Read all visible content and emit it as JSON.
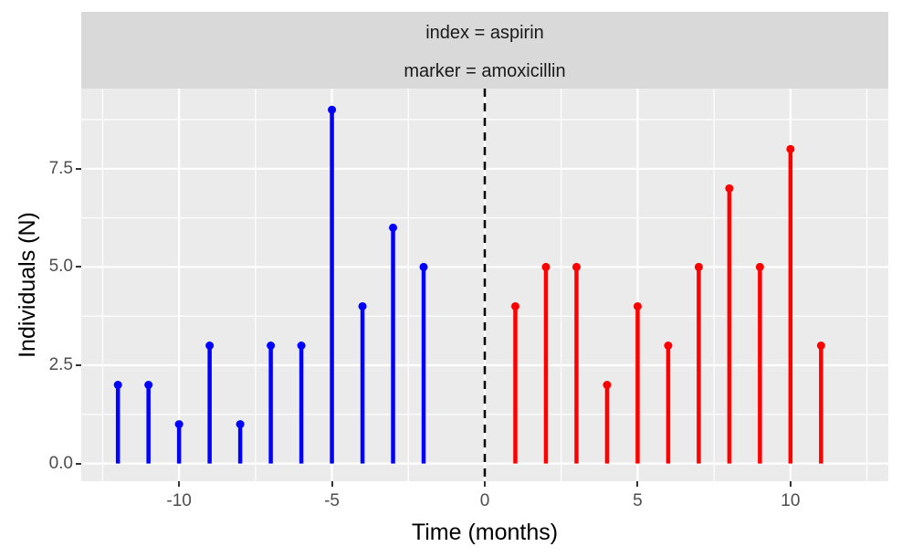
{
  "chart_data": {
    "type": "stem",
    "facet_strip_labels": [
      "index = aspirin",
      "marker = amoxicillin"
    ],
    "xlabel": "Time (months)",
    "ylabel": "Individuals (N)",
    "x_ticks": [
      -10,
      -5,
      0,
      5,
      10
    ],
    "x_tick_labels": [
      "-10",
      "-5",
      "0",
      "5",
      "10"
    ],
    "x_minor_gridlines": [
      -12.5,
      -7.5,
      -2.5,
      2.5,
      7.5,
      12.5
    ],
    "y_ticks": [
      0,
      2.5,
      5,
      7.5
    ],
    "y_tick_labels": [
      "0.0",
      "2.5",
      "5.0",
      "7.5"
    ],
    "y_minor_gridlines": [
      1.25,
      3.75,
      6.25,
      8.75
    ],
    "xlim": [
      -13.2,
      13.2
    ],
    "ylim": [
      -0.45,
      9.54
    ],
    "baseline_y": 0,
    "reference_line": {
      "x": 0,
      "style": "dashed",
      "color": "#000000"
    },
    "grid": "on",
    "legend": "none",
    "series": [
      {
        "name": "pre-index-blue",
        "color": "#0000FF",
        "points": [
          [
            -12,
            2
          ],
          [
            -11,
            2
          ],
          [
            -10,
            1
          ],
          [
            -9,
            3
          ],
          [
            -8,
            1
          ],
          [
            -7,
            3
          ],
          [
            -6,
            3
          ],
          [
            -5,
            9
          ],
          [
            -4,
            4
          ],
          [
            -3,
            6
          ],
          [
            -2,
            5
          ]
        ]
      },
      {
        "name": "post-index-red",
        "color": "#FF0000",
        "points": [
          [
            1,
            4
          ],
          [
            2,
            5
          ],
          [
            3,
            5
          ],
          [
            4,
            2
          ],
          [
            5,
            4
          ],
          [
            6,
            3
          ],
          [
            7,
            5
          ],
          [
            8,
            7
          ],
          [
            9,
            5
          ],
          [
            10,
            8
          ],
          [
            11,
            3
          ]
        ]
      }
    ],
    "colors": {
      "page_bg": "#FFFFFF",
      "panel_bg": "#EBEBEB",
      "strip_bg": "#D9D9D9",
      "gridline": "#FFFFFF",
      "tick_text": "#4D4D4D",
      "tick_mark": "#333333",
      "axis_title": "#000000",
      "strip_text": "#1A1A1A",
      "blue_stem": "#0000FF",
      "red_stem": "#FF0000"
    }
  }
}
